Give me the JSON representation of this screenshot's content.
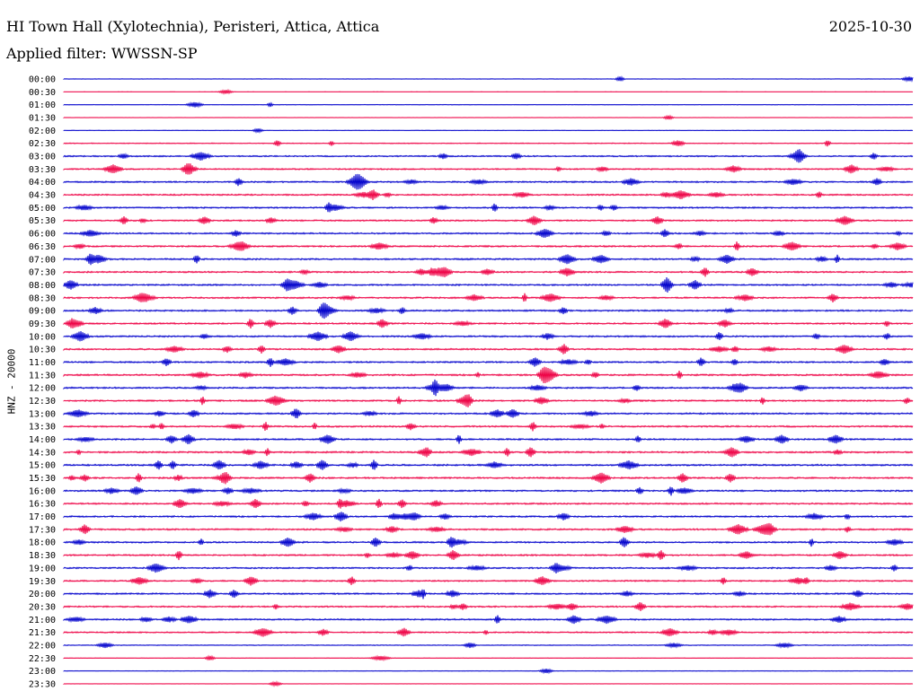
{
  "header": {
    "title": "HI Town Hall (Xylotechnia), Peristeri, Attica, Attica",
    "date": "2025-10-30",
    "filter": "Applied filter: WWSSN-SP"
  },
  "y_axis_label": "HNZ - 20000",
  "chart_data": {
    "type": "line",
    "chart_kind": "helicorder",
    "colors": [
      "#0000cc",
      "#ee0044"
    ],
    "rows": [
      {
        "time": "00:00",
        "activity": 0.15
      },
      {
        "time": "00:30",
        "activity": 0.05
      },
      {
        "time": "01:00",
        "activity": 0.15
      },
      {
        "time": "01:30",
        "activity": 0.05
      },
      {
        "time": "02:00",
        "activity": 0.1
      },
      {
        "time": "02:30",
        "activity": 0.35
      },
      {
        "time": "03:00",
        "activity": 0.6
      },
      {
        "time": "03:30",
        "activity": 0.65
      },
      {
        "time": "04:00",
        "activity": 0.7
      },
      {
        "time": "04:30",
        "activity": 0.7
      },
      {
        "time": "05:00",
        "activity": 0.7
      },
      {
        "time": "05:30",
        "activity": 0.7
      },
      {
        "time": "06:00",
        "activity": 0.7
      },
      {
        "time": "06:30",
        "activity": 0.75
      },
      {
        "time": "07:00",
        "activity": 0.75
      },
      {
        "time": "07:30",
        "activity": 0.75
      },
      {
        "time": "08:00",
        "activity": 0.75
      },
      {
        "time": "08:30",
        "activity": 0.75
      },
      {
        "time": "09:00",
        "activity": 0.75
      },
      {
        "time": "09:30",
        "activity": 0.75
      },
      {
        "time": "10:00",
        "activity": 0.75
      },
      {
        "time": "10:30",
        "activity": 0.75
      },
      {
        "time": "11:00",
        "activity": 0.75
      },
      {
        "time": "11:30",
        "activity": 0.8
      },
      {
        "time": "12:00",
        "activity": 0.75
      },
      {
        "time": "12:30",
        "activity": 0.75
      },
      {
        "time": "13:00",
        "activity": 0.75
      },
      {
        "time": "13:30",
        "activity": 0.75
      },
      {
        "time": "14:00",
        "activity": 0.75
      },
      {
        "time": "14:30",
        "activity": 0.8
      },
      {
        "time": "15:00",
        "activity": 0.8
      },
      {
        "time": "15:30",
        "activity": 0.8
      },
      {
        "time": "16:00",
        "activity": 0.75
      },
      {
        "time": "16:30",
        "activity": 0.75
      },
      {
        "time": "17:00",
        "activity": 0.75
      },
      {
        "time": "17:30",
        "activity": 0.75
      },
      {
        "time": "18:00",
        "activity": 0.75
      },
      {
        "time": "18:30",
        "activity": 0.75
      },
      {
        "time": "19:00",
        "activity": 0.7
      },
      {
        "time": "19:30",
        "activity": 0.7
      },
      {
        "time": "20:00",
        "activity": 0.7
      },
      {
        "time": "20:30",
        "activity": 0.7
      },
      {
        "time": "21:00",
        "activity": 0.7
      },
      {
        "time": "21:30",
        "activity": 0.6
      },
      {
        "time": "22:00",
        "activity": 0.3
      },
      {
        "time": "22:30",
        "activity": 0.15
      },
      {
        "time": "23:00",
        "activity": 0.1
      },
      {
        "time": "23:30",
        "activity": 0.05
      }
    ]
  }
}
